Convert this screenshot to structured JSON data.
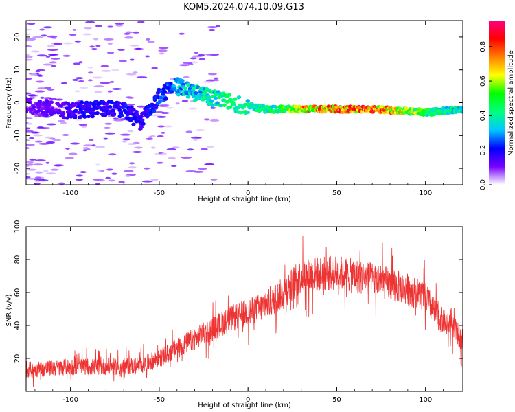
{
  "title": "KOM5.2024.074.10.09.G13",
  "chart_data": [
    {
      "type": "heatmap",
      "xlabel": "Height of straight line (km)",
      "ylabel": "Frequency (Hz)",
      "xlim": [
        -125,
        121
      ],
      "ylim": [
        -25,
        25
      ],
      "xticks": [
        -100,
        -50,
        0,
        50,
        100
      ],
      "yticks": [
        -20,
        -10,
        0,
        10,
        20
      ],
      "colorbar": {
        "label": "Normalized spectral amplitude",
        "range": [
          0,
          0.95
        ],
        "ticks": [
          "0.0",
          "0.2",
          "0.4",
          "0.6",
          "0.8"
        ],
        "colormap": [
          "#ffffff",
          "#7700ff",
          "#0000ff",
          "#00c8ff",
          "#00ff80",
          "#00ff00",
          "#ffff00",
          "#ff8000",
          "#ff0000",
          "#ff0080"
        ]
      },
      "ridge": {
        "x": [
          -125,
          -100,
          -90,
          -80,
          -70,
          -60,
          -50,
          -40,
          -35,
          -30,
          -20,
          -10,
          0,
          10,
          20,
          30,
          50,
          70,
          90,
          100,
          110,
          120
        ],
        "y": [
          -1,
          -2.5,
          -2,
          -1.5,
          -2,
          -6,
          2,
          5,
          4,
          3,
          1.5,
          0,
          -1,
          -2,
          -2,
          -2,
          -2,
          -2,
          -2.5,
          -3,
          -2.5,
          -2.2
        ],
        "amplitude": [
          0.1,
          0.15,
          0.2,
          0.18,
          0.2,
          0.18,
          0.22,
          0.3,
          0.35,
          0.35,
          0.4,
          0.45,
          0.4,
          0.4,
          0.5,
          0.7,
          0.75,
          0.8,
          0.6,
          0.5,
          0.4,
          0.4
        ]
      }
    },
    {
      "type": "line",
      "xlabel": "Height of straight line (km)",
      "ylabel": "SNR (v/v)",
      "xlim": [
        -125,
        121
      ],
      "ylim": [
        0,
        100
      ],
      "xticks": [
        -100,
        -50,
        0,
        50,
        100
      ],
      "yticks": [
        20,
        40,
        60,
        80,
        100
      ],
      "series": [
        {
          "color": "#ee3333",
          "trend_x": [
            -125,
            -100,
            -70,
            -60,
            -50,
            -40,
            -30,
            -20,
            -10,
            0,
            10,
            20,
            30,
            50,
            70,
            90,
            100,
            105,
            110,
            115,
            121
          ],
          "trend_y": [
            13,
            15,
            15,
            16,
            20,
            26,
            32,
            38,
            44,
            48,
            52,
            60,
            70,
            72,
            68,
            62,
            57,
            48,
            42,
            40,
            30
          ],
          "noise": 6
        }
      ]
    }
  ]
}
